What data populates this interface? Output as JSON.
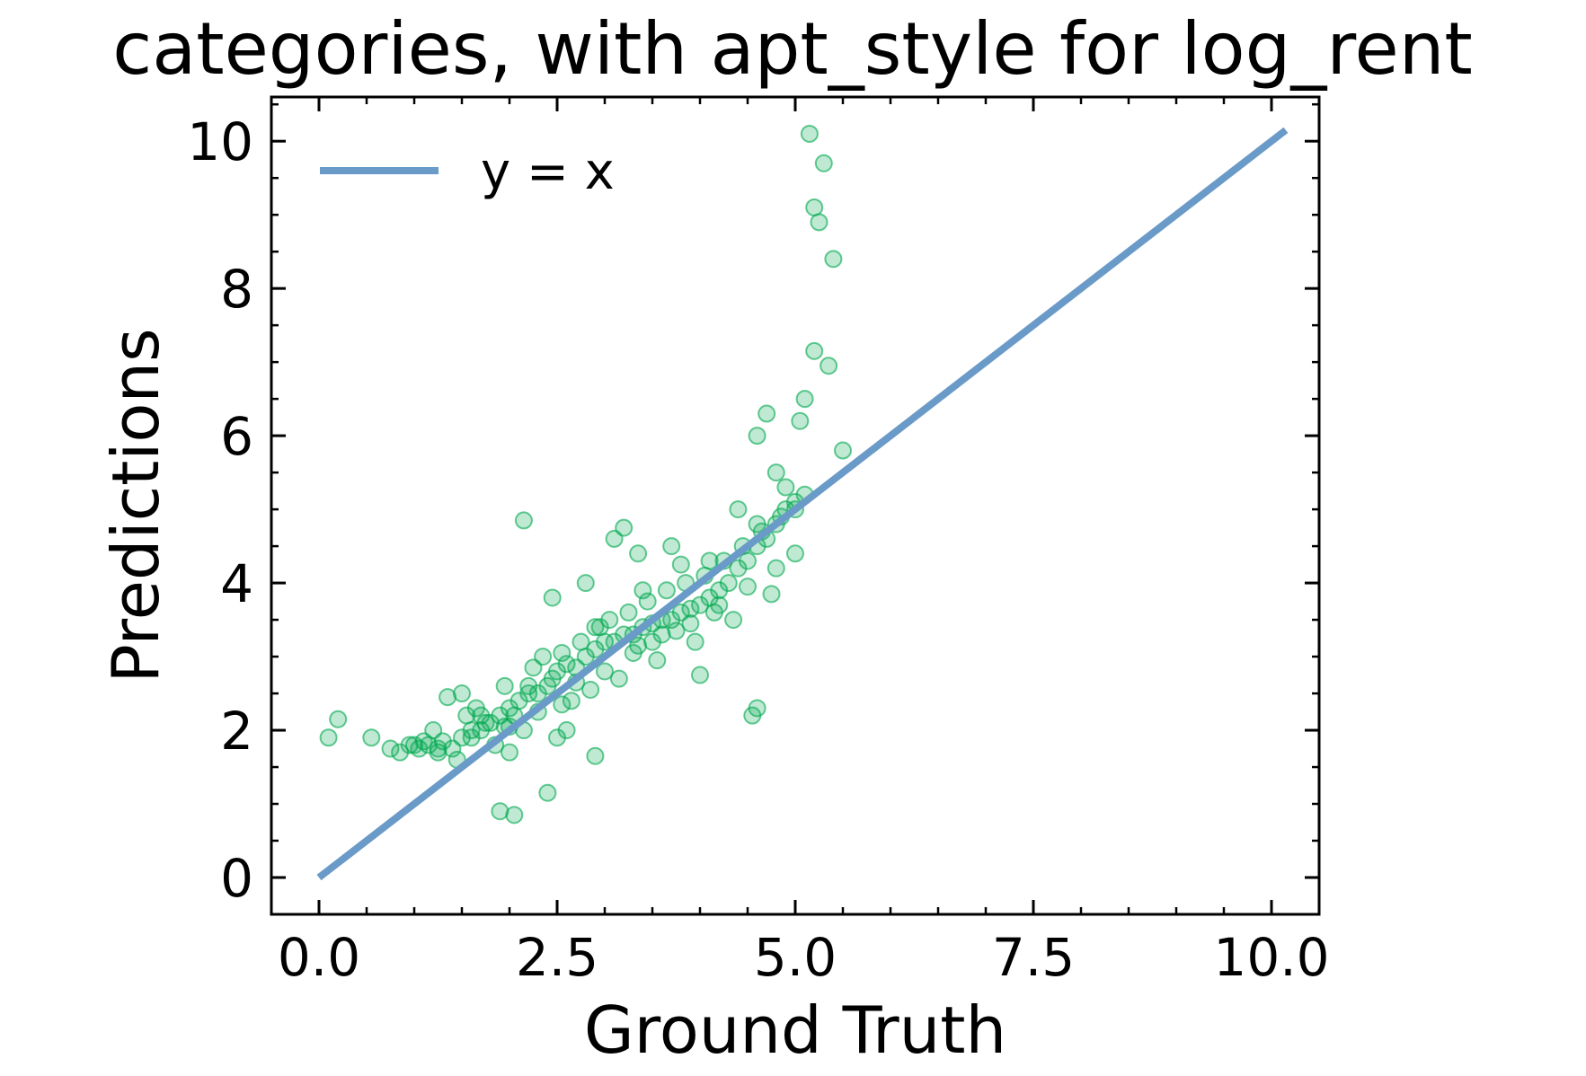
{
  "chart_data": {
    "type": "scatter",
    "title": "categories, with apt_style for log_rent",
    "xlabel": "Ground Truth",
    "ylabel": "Predictions",
    "xlim": [
      -0.5,
      10.5
    ],
    "ylim": [
      -0.5,
      10.6
    ],
    "xticks": [
      0.0,
      2.5,
      5.0,
      7.5,
      10.0
    ],
    "xtick_labels": [
      "0.0",
      "2.5",
      "5.0",
      "7.5",
      "10.0"
    ],
    "yticks": [
      0,
      2,
      4,
      6,
      8,
      10
    ],
    "ytick_labels": [
      "0",
      "2",
      "4",
      "6",
      "8",
      "10"
    ],
    "grid": false,
    "legend_position": "top-left",
    "series": [
      {
        "name": "y = x",
        "kind": "line",
        "color": "#6a9ac8",
        "x": [
          0.0,
          10.15
        ],
        "y": [
          0.0,
          10.15
        ]
      },
      {
        "kind": "scatter",
        "color": "#00a84f",
        "marker_opacity": 0.25,
        "x": [
          0.1,
          0.2,
          0.55,
          0.75,
          0.85,
          0.95,
          1.05,
          1.15,
          1.25,
          1.3,
          1.4,
          1.5,
          1.6,
          1.7,
          1.75,
          1.8,
          1.9,
          1.95,
          2.0,
          2.05,
          2.1,
          2.2,
          2.3,
          2.4,
          2.45,
          2.5,
          2.6,
          2.7,
          2.8,
          2.9,
          3.0,
          3.1,
          3.2,
          3.3,
          3.4,
          3.5,
          3.6,
          3.7,
          3.8,
          3.9,
          4.0,
          4.1,
          4.2,
          4.3,
          4.4,
          4.5,
          4.6,
          4.7,
          4.8,
          4.9,
          5.0,
          5.1,
          1.9,
          2.05,
          2.4,
          2.5,
          2.6,
          2.9,
          3.35,
          3.5,
          3.7,
          4.0,
          4.55,
          4.6,
          4.8,
          5.0,
          5.15,
          5.3,
          5.4,
          5.5,
          5.25,
          5.2,
          5.35,
          5.1,
          5.05,
          5.2,
          4.4,
          4.7,
          4.6,
          4.9,
          3.2,
          3.1,
          2.8,
          2.15,
          1.5,
          1.35,
          1.2,
          1.55,
          1.65,
          1.95,
          2.25,
          2.35,
          2.55,
          2.75,
          2.95,
          3.05,
          3.25,
          3.45,
          3.65,
          3.85,
          4.05,
          4.25,
          4.45,
          4.65,
          4.85,
          1.45,
          1.85,
          2.15,
          2.65,
          3.15,
          3.55,
          3.95,
          4.35,
          4.75,
          1.25,
          1.6,
          2.0,
          2.3,
          2.7,
          3.0,
          3.3,
          3.6,
          3.9,
          4.2,
          4.5,
          4.8,
          5.0,
          1.0,
          1.1,
          1.7,
          2.2,
          2.9,
          3.4,
          3.8,
          4.1,
          4.6,
          2.55,
          2.85,
          3.35,
          3.75,
          4.15,
          2.0,
          2.45
        ],
        "y": [
          1.9,
          2.15,
          1.9,
          1.75,
          1.7,
          1.8,
          1.75,
          1.8,
          1.75,
          1.85,
          1.75,
          1.9,
          2.0,
          2.0,
          2.1,
          2.1,
          2.2,
          2.05,
          2.3,
          2.2,
          2.4,
          2.5,
          2.5,
          2.6,
          2.7,
          2.8,
          2.9,
          2.85,
          3.0,
          3.1,
          3.2,
          3.2,
          3.3,
          3.3,
          3.4,
          3.45,
          3.5,
          3.5,
          3.6,
          3.65,
          3.7,
          3.8,
          3.9,
          4.0,
          4.2,
          4.3,
          4.5,
          4.6,
          4.8,
          5.0,
          5.1,
          5.2,
          0.9,
          0.85,
          1.15,
          1.9,
          2.0,
          1.65,
          4.4,
          3.2,
          4.5,
          2.75,
          2.2,
          2.3,
          5.5,
          5.0,
          10.1,
          9.7,
          8.4,
          5.8,
          8.9,
          9.1,
          6.95,
          6.5,
          6.2,
          7.15,
          5.0,
          6.3,
          6.0,
          5.3,
          4.75,
          4.6,
          4.0,
          4.85,
          2.5,
          2.45,
          2.0,
          2.2,
          2.3,
          2.6,
          2.85,
          3.0,
          3.05,
          3.2,
          3.4,
          3.5,
          3.6,
          3.75,
          3.9,
          4.0,
          4.1,
          4.3,
          4.5,
          4.7,
          4.9,
          1.6,
          1.8,
          2.0,
          2.4,
          2.7,
          2.95,
          3.2,
          3.5,
          3.85,
          1.7,
          1.9,
          2.05,
          2.25,
          2.65,
          2.8,
          3.05,
          3.3,
          3.45,
          3.7,
          3.95,
          4.2,
          4.4,
          1.8,
          1.85,
          2.2,
          2.6,
          3.4,
          3.9,
          4.25,
          4.3,
          4.8,
          2.35,
          2.55,
          3.15,
          3.35,
          3.6,
          1.7,
          3.8
        ]
      }
    ]
  }
}
